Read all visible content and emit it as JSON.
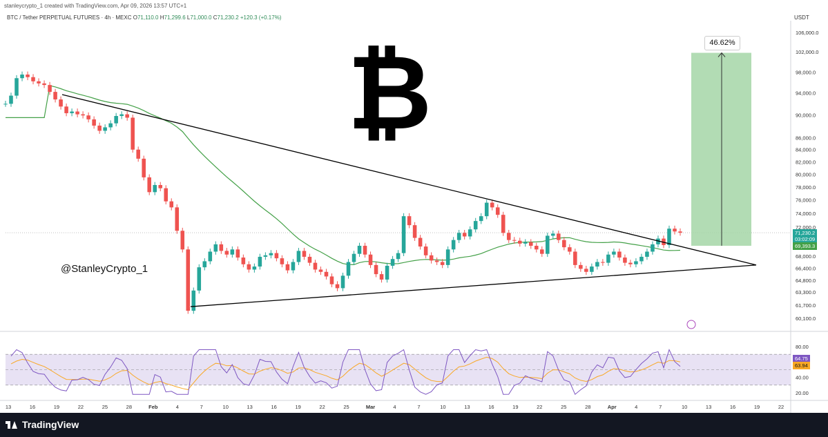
{
  "header": {
    "creator_line": "stanleycrypto_1 created with TradingView.com, Apr 09, 2026 13:57 UTC+1",
    "symbol_line": "BTC / Tether PERPETUAL FUTURES · 4h · MEXC",
    "open_label": "O",
    "open": "71,110.0",
    "high_label": "H",
    "high": "71,299.6",
    "low_label": "L",
    "low": "71,000.0",
    "close_label": "C",
    "close": "71,230.2",
    "change": "+120.3 (+0.17%)",
    "currency": "USDT"
  },
  "overlay": {
    "btc_symbol": "₿",
    "watermark": "@StanleyCrypto_1",
    "target_percent": "46.62%"
  },
  "price_tags": {
    "last_price": "71,230.2",
    "countdown": "03:02:09",
    "ma_value": "69,393.3"
  },
  "rsi_tags": {
    "rsi": "64.75",
    "rsi_ma": "63.94"
  },
  "footer": {
    "brand": "TradingView"
  },
  "colors": {
    "up": "#26a69a",
    "down": "#ef5350",
    "ma": "#43a047",
    "trend": "#000000",
    "target_zone": "#a5d6a7",
    "rsi_line": "#7e57c2",
    "rsi_ma": "#f9a825",
    "rsi_band": "#e8e2f4"
  },
  "chart_data": {
    "type": "candlestick",
    "price_axis": {
      "ticks": [
        "106,000.0",
        "102,000.0",
        "98,000.0",
        "94,000.0",
        "90,000.0",
        "86,000.0",
        "84,000.0",
        "82,000.0",
        "80,000.0",
        "78,000.0",
        "76,000.0",
        "74,000.0",
        "72,000.0",
        "68,000.0",
        "66,400.0",
        "64,800.0",
        "63,300.0",
        "61,700.0",
        "60,100.0"
      ],
      "scale": "log"
    },
    "time_axis": [
      "13",
      "16",
      "19",
      "22",
      "25",
      "28",
      "Feb",
      "4",
      "7",
      "10",
      "13",
      "16",
      "19",
      "22",
      "25",
      "Mar",
      "4",
      "7",
      "10",
      "13",
      "16",
      "19",
      "22",
      "25",
      "28",
      "Apr",
      "4",
      "7",
      "10",
      "13",
      "16",
      "19",
      "22"
    ],
    "close_series": [
      92000,
      93500,
      96800,
      97500,
      97000,
      96200,
      95800,
      95500,
      94200,
      92800,
      91500,
      90300,
      90600,
      90100,
      89900,
      89200,
      88100,
      87200,
      87800,
      88500,
      89800,
      90100,
      89500,
      84000,
      82500,
      79500,
      77200,
      78300,
      77800,
      75800,
      74900,
      71500,
      68900,
      61000,
      63500,
      66500,
      67300,
      68600,
      69600,
      68700,
      68200,
      68900,
      67800,
      66900,
      66200,
      66600,
      67900,
      68100,
      68400,
      67700,
      66900,
      66100,
      67200,
      68700,
      67900,
      67100,
      66200,
      65900,
      65300,
      64300,
      63800,
      65400,
      67200,
      68300,
      69400,
      68200,
      66800,
      65600,
      64900,
      66700,
      67600,
      68400,
      73600,
      72300,
      70500,
      69300,
      68100,
      67400,
      67200,
      66800,
      68900,
      70200,
      71200,
      70700,
      71700,
      72900,
      73600,
      75600,
      74900,
      73800,
      71200,
      70200,
      70100,
      69700,
      69900,
      69400,
      68900,
      68300,
      70800,
      71100,
      70200,
      69200,
      68600,
      66800,
      66300,
      65900,
      66600,
      67200,
      67100,
      68200,
      68600,
      67800,
      67100,
      66900,
      67300,
      67900,
      68600,
      69600,
      70400,
      69500,
      71800,
      71400,
      71230
    ],
    "moving_average": {
      "period": "unlabeled",
      "end_value": 69393.3
    },
    "trendlines": [
      {
        "name": "descending resistance",
        "from_price": 93700,
        "to_price": 66800
      },
      {
        "name": "ascending support",
        "from_price": 61500,
        "to_price": 66800
      }
    ],
    "target_zone": {
      "from_price": 69400,
      "to_price": 101800,
      "percent": "46.62%"
    },
    "rsi": {
      "ticks": [
        "80.00",
        "40.00",
        "20.00"
      ],
      "levels": [
        70,
        50,
        30
      ],
      "last": 64.75,
      "ma_last": 63.94
    }
  }
}
